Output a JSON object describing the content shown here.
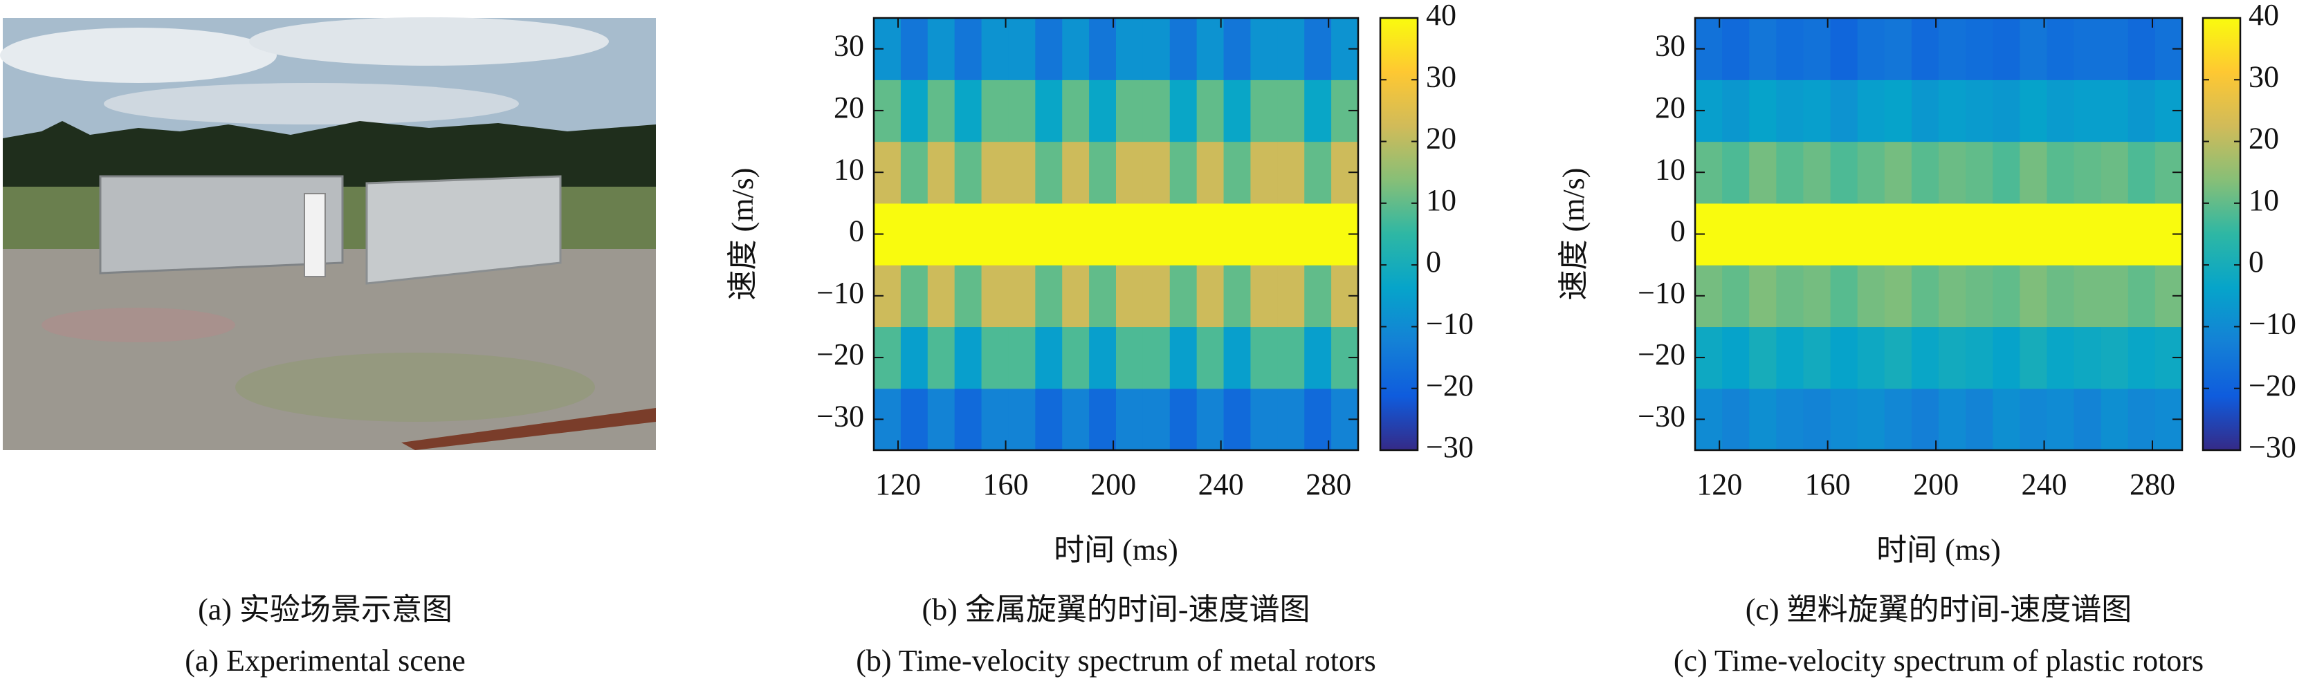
{
  "photo_panel": {
    "caption_zh": "(a) 实验场景示意图",
    "caption_en": "(a) Experimental scene"
  },
  "chart_data": [
    {
      "type": "heatmap",
      "xlabel": "时间 (ms)",
      "ylabel": "速度 (m/s)",
      "caption_zh": "(b) 金属旋翼的时间-速度谱图",
      "caption_en": "(b) Time-velocity spectrum of metal rotors",
      "colormap": "parula",
      "xlim": [
        111,
        291
      ],
      "ylim": [
        -35,
        35
      ],
      "clim": [
        -30,
        40
      ],
      "xticks": [
        120,
        160,
        200,
        240,
        280
      ],
      "yticks": [
        {
          "value": -30,
          "label": "−30"
        },
        {
          "value": -20,
          "label": "−20"
        },
        {
          "value": -10,
          "label": "−10"
        },
        0,
        10,
        20,
        30
      ],
      "cticks": [
        {
          "value": -30,
          "label": "−30"
        },
        {
          "value": -20,
          "label": "−20"
        },
        {
          "value": -10,
          "label": "−10"
        },
        0,
        10,
        20,
        30,
        40
      ],
      "xbins": [
        111,
        121,
        131,
        141,
        151,
        161,
        171,
        181,
        191,
        201,
        211,
        221,
        231,
        241,
        251,
        261,
        271,
        281,
        291
      ],
      "ybins": [
        -35,
        -25,
        -15,
        -5,
        5,
        15,
        25,
        35
      ],
      "z": [
        [
          -12,
          -18,
          -12,
          -18,
          -12,
          -12,
          -18,
          -12,
          -18,
          -12,
          -12,
          -18,
          -12,
          -18,
          -12,
          -12,
          -18,
          -12
        ],
        [
          8,
          -5,
          8,
          -5,
          8,
          8,
          -5,
          8,
          -5,
          8,
          8,
          -5,
          8,
          -5,
          8,
          8,
          -5,
          8
        ],
        [
          22,
          10,
          22,
          10,
          22,
          22,
          10,
          22,
          10,
          22,
          22,
          10,
          22,
          10,
          22,
          22,
          10,
          22
        ],
        [
          40,
          40,
          40,
          40,
          40,
          40,
          40,
          40,
          40,
          40,
          40,
          40,
          40,
          40,
          40,
          40,
          40,
          40
        ],
        [
          22,
          10,
          22,
          10,
          22,
          22,
          10,
          22,
          10,
          22,
          22,
          10,
          22,
          10,
          22,
          22,
          10,
          22
        ],
        [
          10,
          -3,
          10,
          -3,
          10,
          10,
          -3,
          10,
          -3,
          10,
          10,
          -3,
          10,
          -3,
          10,
          10,
          -3,
          10
        ],
        [
          -8,
          -15,
          -8,
          -15,
          -8,
          -8,
          -15,
          -8,
          -15,
          -8,
          -8,
          -15,
          -8,
          -15,
          -8,
          -8,
          -15,
          -8
        ]
      ]
    },
    {
      "type": "heatmap",
      "xlabel": "时间 (ms)",
      "ylabel": "速度 (m/s)",
      "caption_zh": "(c) 塑料旋翼的时间-速度谱图",
      "caption_en": "(c) Time-velocity spectrum of plastic rotors",
      "colormap": "parula",
      "xlim": [
        111,
        291
      ],
      "ylim": [
        -35,
        35
      ],
      "clim": [
        -30,
        40
      ],
      "xticks": [
        120,
        160,
        200,
        240,
        280
      ],
      "yticks": [
        {
          "value": -30,
          "label": "−30"
        },
        {
          "value": -20,
          "label": "−20"
        },
        {
          "value": -10,
          "label": "−10"
        },
        0,
        10,
        20,
        30
      ],
      "cticks": [
        {
          "value": -30,
          "label": "−30"
        },
        {
          "value": -20,
          "label": "−20"
        },
        {
          "value": -10,
          "label": "−10"
        },
        0,
        10,
        20,
        30,
        40
      ],
      "xbins": [
        111,
        121,
        131,
        141,
        151,
        161,
        171,
        181,
        191,
        201,
        211,
        221,
        231,
        241,
        251,
        261,
        271,
        281,
        291
      ],
      "ybins": [
        -35,
        -25,
        -15,
        -5,
        5,
        15,
        25,
        35
      ],
      "z": [
        [
          -10,
          -12,
          -9,
          -11,
          -12,
          -10,
          -9,
          -11,
          -13,
          -10,
          -12,
          -9,
          -11,
          -10,
          -12,
          -9,
          -11,
          -10
        ],
        [
          -2,
          -4,
          0,
          -3,
          -1,
          -4,
          -2,
          0,
          -3,
          -1,
          -2,
          -4,
          0,
          -3,
          -2,
          -1,
          -3,
          -2
        ],
        [
          12,
          10,
          13,
          11,
          12,
          9,
          12,
          13,
          10,
          12,
          11,
          10,
          13,
          11,
          12,
          12,
          10,
          12
        ],
        [
          40,
          40,
          40,
          40,
          40,
          40,
          40,
          40,
          40,
          40,
          40,
          40,
          40,
          40,
          40,
          40,
          40,
          40
        ],
        [
          10,
          8,
          12,
          9,
          11,
          8,
          10,
          12,
          9,
          11,
          10,
          8,
          12,
          9,
          10,
          11,
          8,
          10
        ],
        [
          -5,
          -7,
          -4,
          -6,
          -5,
          -8,
          -5,
          -4,
          -7,
          -5,
          -6,
          -7,
          -4,
          -6,
          -5,
          -5,
          -7,
          -5
        ],
        [
          -16,
          -18,
          -15,
          -17,
          -16,
          -19,
          -16,
          -15,
          -18,
          -16,
          -17,
          -18,
          -15,
          -17,
          -16,
          -16,
          -18,
          -16
        ]
      ]
    }
  ]
}
